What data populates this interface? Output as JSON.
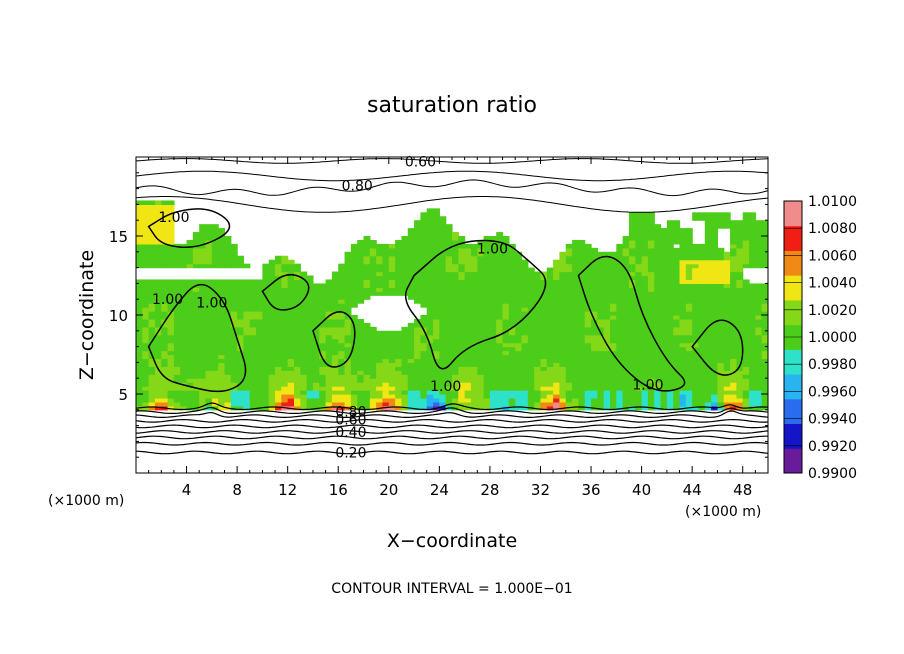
{
  "chart_data": {
    "type": "heatmap",
    "title": "saturation ratio",
    "xlabel": "X−coordinate",
    "ylabel": "Z−coordinate",
    "x_unit_left": "(×1000 m)",
    "x_unit_right": "(×1000 m)",
    "footer": "CONTOUR INTERVAL = 1.000E−01",
    "xlim": [
      0,
      50
    ],
    "ylim": [
      0,
      20
    ],
    "x_ticks": [
      4,
      8,
      12,
      16,
      20,
      24,
      28,
      32,
      36,
      40,
      44,
      48
    ],
    "x_tick_labels": [
      "4",
      "8",
      "12",
      "16",
      "20",
      "24",
      "28",
      "32",
      "36",
      "40",
      "44",
      "48"
    ],
    "y_ticks": [
      5,
      10,
      15
    ],
    "y_tick_labels": [
      "5",
      "10",
      "15"
    ],
    "colorbar": {
      "min": 0.99,
      "max": 1.01,
      "levels": [
        0.99,
        0.992,
        0.994,
        0.996,
        0.998,
        1.0,
        1.002,
        1.004,
        1.006,
        1.008,
        1.01
      ],
      "labels": [
        "0.9900",
        "0.9920",
        "0.9940",
        "0.9960",
        "0.9980",
        "1.0000",
        "1.0020",
        "1.0040",
        "1.0060",
        "1.0080",
        "1.0100"
      ],
      "colors": [
        "#6a1b9a",
        "#1414c8",
        "#2a6cf0",
        "#28b4f0",
        "#2de2c8",
        "#4ccd1a",
        "#84d818",
        "#f0e614",
        "#f08a14",
        "#f01e14",
        "#f08c8c"
      ]
    },
    "contour_interval": 0.1,
    "contour_labels": [
      {
        "text": "0.60",
        "x": 22.5,
        "z": 19.7
      },
      {
        "text": "0.80",
        "x": 17.5,
        "z": 18.2
      },
      {
        "text": "1.00",
        "x": 3.0,
        "z": 16.2
      },
      {
        "text": "1.00",
        "x": 28.2,
        "z": 14.2
      },
      {
        "text": "1.00",
        "x": 2.5,
        "z": 11.0
      },
      {
        "text": "1.00",
        "x": 6.0,
        "z": 10.8
      },
      {
        "text": "1.00",
        "x": 24.5,
        "z": 5.5
      },
      {
        "text": "1.00",
        "x": 40.5,
        "z": 5.6
      },
      {
        "text": "0.80",
        "x": 17.0,
        "z": 3.9
      },
      {
        "text": "0.60",
        "x": 17.0,
        "z": 3.4
      },
      {
        "text": "0.40",
        "x": 17.0,
        "z": 2.6
      },
      {
        "text": "0.20",
        "x": 17.0,
        "z": 1.3
      }
    ]
  }
}
